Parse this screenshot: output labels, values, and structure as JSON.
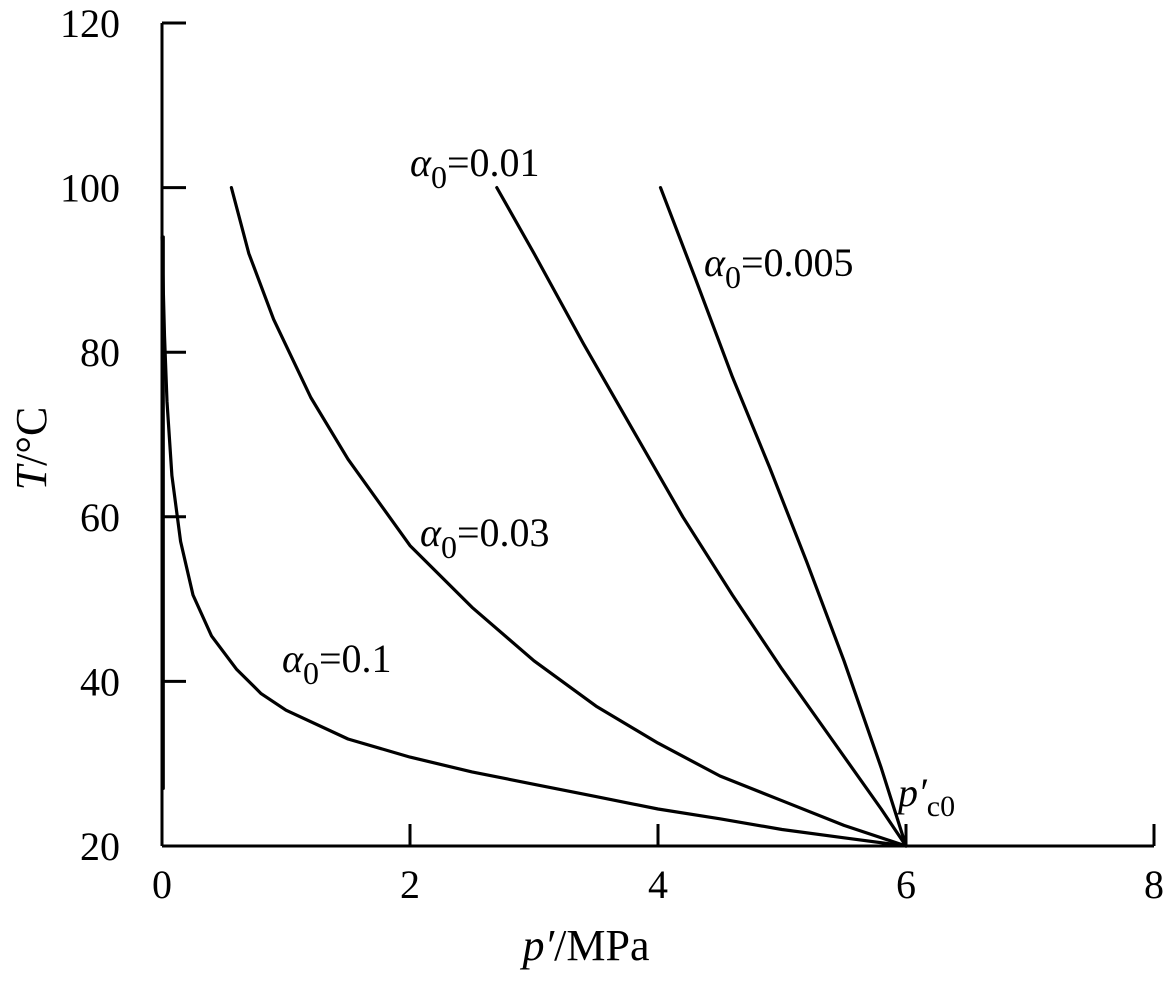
{
  "chart_data": {
    "type": "line",
    "xlabel": "p′/MPa",
    "ylabel": "T/°C",
    "xlim": [
      0,
      8
    ],
    "ylim": [
      20,
      120
    ],
    "xticks": [
      0,
      2,
      4,
      6,
      8
    ],
    "yticks": [
      20,
      40,
      60,
      80,
      100,
      120
    ],
    "grid": false,
    "legend": "none",
    "series": [
      {
        "name": "α0=0.005",
        "label": {
          "symbol": "α",
          "sub": "0",
          "rest": "=0.005"
        },
        "x": [
          4.02,
          4.3,
          4.6,
          4.9,
          5.2,
          5.5,
          5.8,
          6.0
        ],
        "y": [
          100.0,
          89.0,
          77.0,
          66.0,
          54.5,
          42.5,
          29.5,
          20.0
        ]
      },
      {
        "name": "α0=0.01",
        "label": {
          "symbol": "α",
          "sub": "0",
          "rest": "=0.01"
        },
        "x": [
          2.7,
          3.0,
          3.4,
          3.8,
          4.2,
          4.6,
          5.0,
          5.4,
          5.8,
          6.0
        ],
        "y": [
          100.0,
          92.0,
          81.0,
          70.5,
          60.0,
          50.5,
          41.5,
          33.0,
          24.5,
          20.0
        ]
      },
      {
        "name": "α0=0.03",
        "label": {
          "symbol": "α",
          "sub": "0",
          "rest": "=0.03"
        },
        "x": [
          0.56,
          0.7,
          0.9,
          1.2,
          1.5,
          2.0,
          2.5,
          3.0,
          3.5,
          4.0,
          4.5,
          5.0,
          5.5,
          6.0
        ],
        "y": [
          100.0,
          92.0,
          84.0,
          74.5,
          67.0,
          56.5,
          49.0,
          42.5,
          37.0,
          32.5,
          28.5,
          25.5,
          22.5,
          20.0
        ]
      },
      {
        "name": "α0=0.1",
        "label": {
          "symbol": "α",
          "sub": "0",
          "rest": "=0.1"
        },
        "x": [
          0.0,
          0.01,
          0.02,
          0.04,
          0.08,
          0.15,
          0.25,
          0.4,
          0.6,
          0.8,
          1.0,
          1.5,
          2.0,
          2.5,
          3.0,
          3.5,
          4.0,
          4.5,
          5.0,
          5.5,
          6.0
        ],
        "y": [
          94.0,
          88.0,
          82.0,
          74.0,
          65.0,
          57.0,
          50.5,
          45.5,
          41.5,
          38.5,
          36.5,
          33.0,
          30.8,
          29.0,
          27.5,
          26.0,
          24.5,
          23.3,
          22.0,
          21.0,
          20.0
        ]
      }
    ],
    "annotations": [
      {
        "text": "p′c0",
        "main": "p′",
        "sub": "c0"
      }
    ]
  }
}
